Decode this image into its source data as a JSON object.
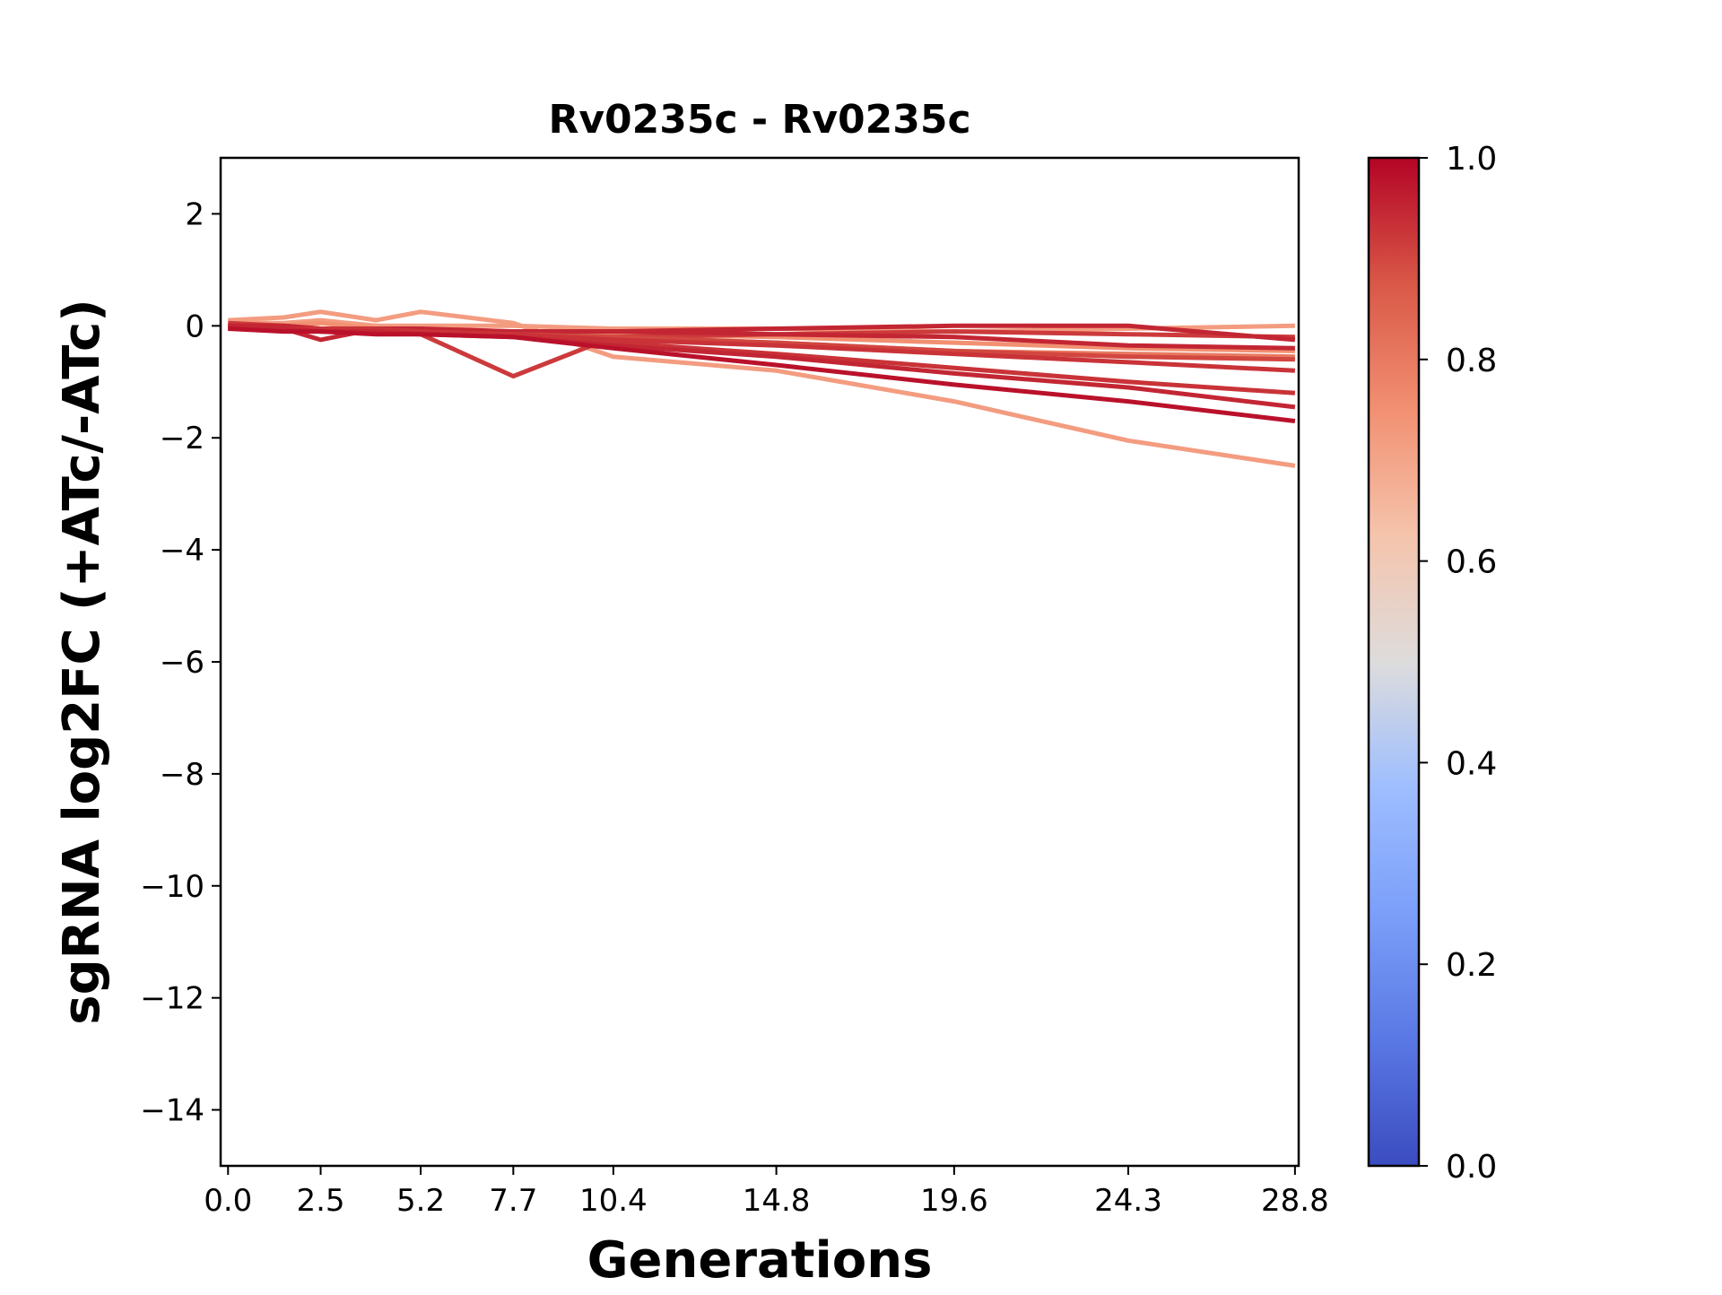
{
  "chart_data": {
    "type": "line",
    "title": "Rv0235c - Rv0235c",
    "xlabel": "Generations",
    "ylabel": "sgRNA log2FC (+ATc/-ATc)",
    "x": [
      0.0,
      1.5,
      2.5,
      4.0,
      5.2,
      7.7,
      10.4,
      14.8,
      19.6,
      24.3,
      28.8
    ],
    "xticks": [
      0.0,
      2.5,
      5.2,
      7.7,
      10.4,
      14.8,
      19.6,
      24.3,
      28.8
    ],
    "xtick_labels": [
      "0.0",
      "2.5",
      "5.2",
      "7.7",
      "10.4",
      "14.8",
      "19.6",
      "24.3",
      "28.8"
    ],
    "xlim": [
      -0.2,
      28.9
    ],
    "ylim": [
      -15,
      3
    ],
    "yticks": [
      2,
      0,
      -2,
      -4,
      -6,
      -8,
      -10,
      -12,
      -14
    ],
    "ytick_labels": [
      "2",
      "0",
      "−2",
      "−4",
      "−6",
      "−8",
      "−10",
      "−12",
      "−14"
    ],
    "grid": false,
    "legend": "none",
    "colormap": "coolwarm",
    "colorbar": {
      "range": [
        0.0,
        1.0
      ],
      "ticks": [
        0.0,
        0.2,
        0.4,
        0.6,
        0.8,
        1.0
      ],
      "tick_labels": [
        "0.0",
        "0.2",
        "0.4",
        "0.6",
        "0.8",
        "1.0"
      ]
    },
    "series": [
      {
        "color_value": 0.72,
        "values": [
          0.1,
          0.15,
          0.25,
          0.1,
          0.25,
          0.05,
          -0.55,
          -0.8,
          -1.35,
          -2.05,
          -2.5
        ]
      },
      {
        "color_value": 0.72,
        "values": [
          0.05,
          0.05,
          0.1,
          0.0,
          0.0,
          0.0,
          -0.05,
          -0.05,
          -0.1,
          -0.05,
          0.0
        ]
      },
      {
        "color_value": 0.75,
        "values": [
          0.0,
          0.0,
          0.05,
          -0.05,
          -0.05,
          -0.1,
          -0.15,
          -0.2,
          -0.3,
          -0.4,
          -0.45
        ]
      },
      {
        "color_value": 0.8,
        "values": [
          0.0,
          -0.05,
          -0.05,
          -0.1,
          -0.1,
          -0.15,
          -0.2,
          -0.3,
          -0.45,
          -0.5,
          -0.55
        ]
      },
      {
        "color_value": 0.92,
        "values": [
          0.05,
          0.0,
          -0.05,
          -0.1,
          -0.15,
          -0.9,
          -0.2,
          -0.15,
          -0.1,
          -0.15,
          -0.2
        ]
      },
      {
        "color_value": 0.95,
        "values": [
          0.0,
          -0.05,
          -0.25,
          -0.05,
          -0.1,
          -0.1,
          -0.1,
          -0.05,
          0.0,
          0.0,
          -0.25
        ]
      },
      {
        "color_value": 0.95,
        "values": [
          0.0,
          0.0,
          -0.05,
          -0.05,
          -0.05,
          -0.1,
          -0.1,
          -0.15,
          -0.2,
          -0.35,
          -0.4
        ]
      },
      {
        "color_value": 0.9,
        "values": [
          -0.05,
          -0.05,
          -0.1,
          -0.1,
          -0.1,
          -0.15,
          -0.2,
          -0.3,
          -0.45,
          -0.55,
          -0.6
        ]
      },
      {
        "color_value": 0.93,
        "values": [
          0.0,
          -0.05,
          -0.1,
          -0.1,
          -0.1,
          -0.15,
          -0.25,
          -0.35,
          -0.5,
          -0.65,
          -0.8
        ]
      },
      {
        "color_value": 0.93,
        "values": [
          -0.05,
          -0.05,
          -0.05,
          -0.05,
          -0.1,
          -0.15,
          -0.3,
          -0.5,
          -0.75,
          -1.0,
          -1.2
        ]
      },
      {
        "color_value": 0.95,
        "values": [
          0.0,
          -0.05,
          -0.1,
          -0.1,
          -0.15,
          -0.2,
          -0.35,
          -0.55,
          -0.85,
          -1.1,
          -1.45
        ]
      },
      {
        "color_value": 0.98,
        "values": [
          -0.05,
          -0.1,
          -0.1,
          -0.15,
          -0.15,
          -0.2,
          -0.4,
          -0.7,
          -1.05,
          -1.35,
          -1.7
        ]
      }
    ]
  }
}
